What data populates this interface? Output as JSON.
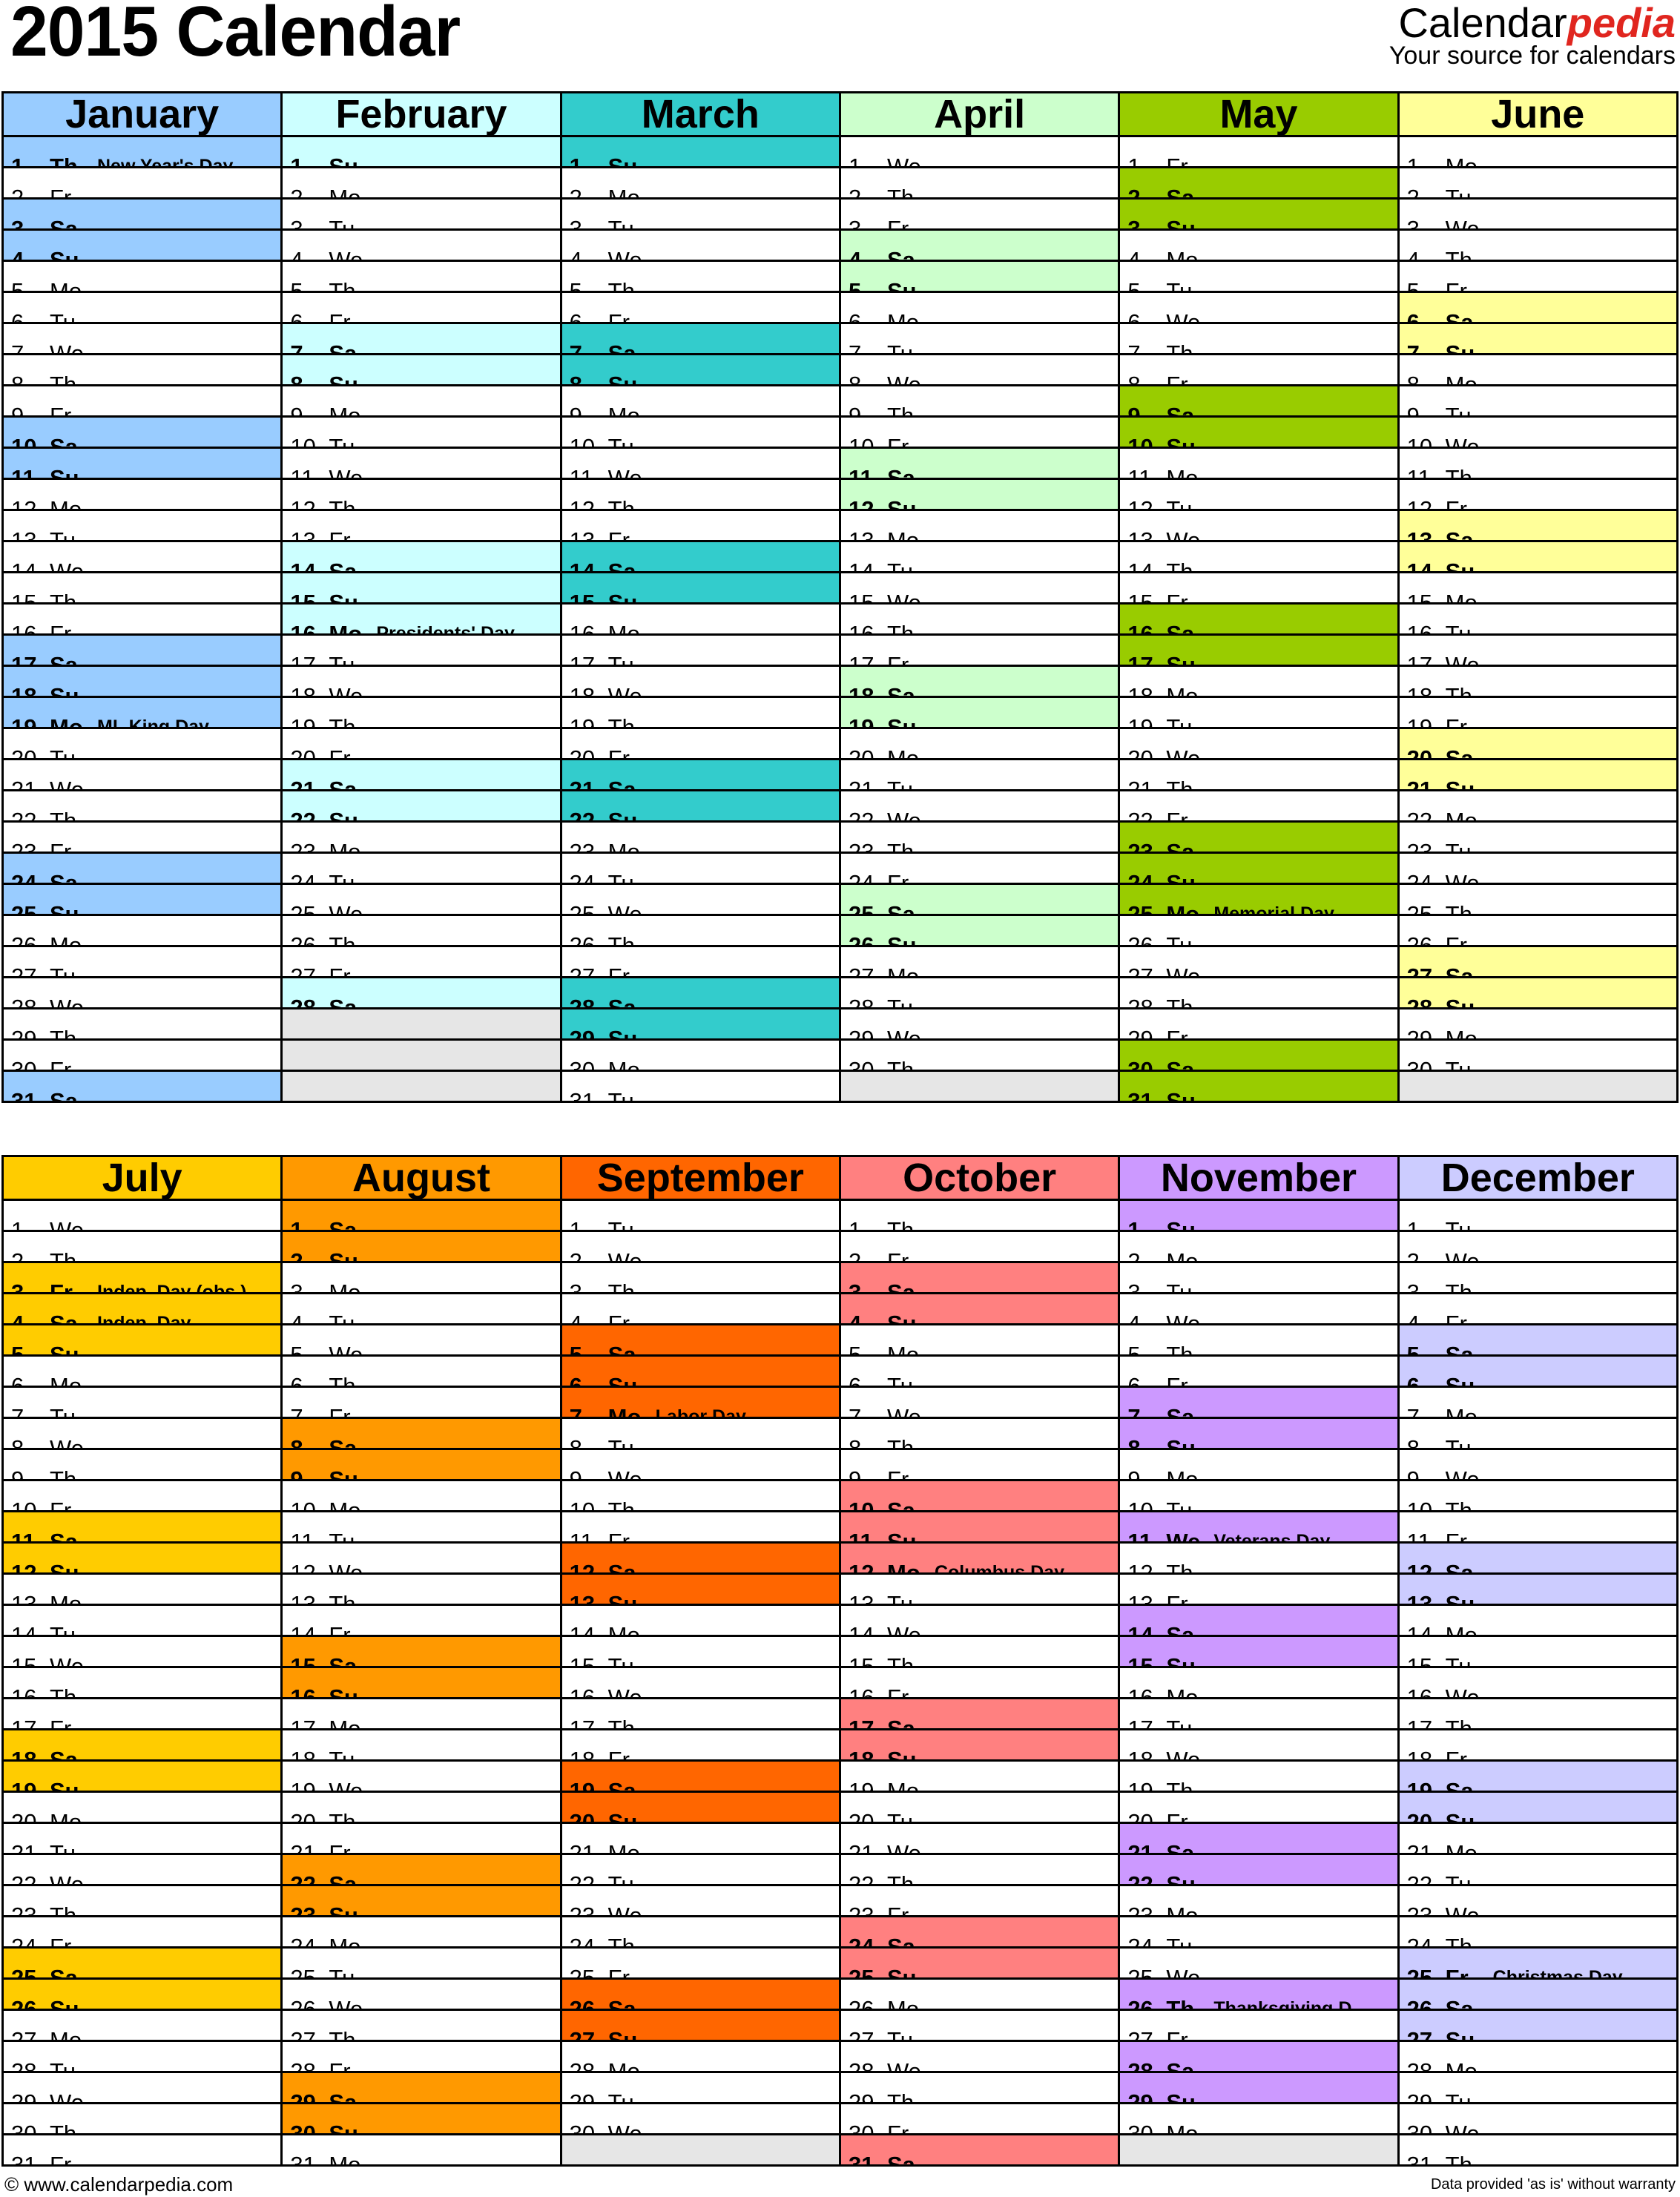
{
  "title": "2015 Calendar",
  "logo": {
    "brand_a": "Calendar",
    "brand_b": "pedia",
    "tagline": "Your source for calendars"
  },
  "weekdays": [
    "Su",
    "Mo",
    "Tu",
    "We",
    "Th",
    "Fr",
    "Sa"
  ],
  "months": [
    {
      "name": "January",
      "color": "#99CCFF",
      "first_weekday": "Th",
      "days": 31,
      "holidays": {
        "1": "New Year's Day",
        "19": "ML King Day"
      }
    },
    {
      "name": "February",
      "color": "#CCFFFF",
      "first_weekday": "Su",
      "days": 28,
      "holidays": {
        "16": "Presidents' Day"
      }
    },
    {
      "name": "March",
      "color": "#33CCCC",
      "first_weekday": "Su",
      "days": 31,
      "holidays": {}
    },
    {
      "name": "April",
      "color": "#CCFFCC",
      "first_weekday": "We",
      "days": 30,
      "holidays": {}
    },
    {
      "name": "May",
      "color": "#99CC00",
      "first_weekday": "Fr",
      "days": 31,
      "holidays": {
        "25": "Memorial Day"
      }
    },
    {
      "name": "June",
      "color": "#FFFF99",
      "first_weekday": "Mo",
      "days": 30,
      "holidays": {}
    },
    {
      "name": "July",
      "color": "#FFCC00",
      "first_weekday": "We",
      "days": 31,
      "holidays": {
        "3": "Indep. Day (obs.)",
        "4": "Indep. Day"
      }
    },
    {
      "name": "August",
      "color": "#FF9900",
      "first_weekday": "Sa",
      "days": 31,
      "holidays": {}
    },
    {
      "name": "September",
      "color": "#FF6600",
      "first_weekday": "Tu",
      "days": 30,
      "holidays": {
        "7": "Labor Day"
      }
    },
    {
      "name": "October",
      "color": "#FF8080",
      "first_weekday": "Th",
      "days": 31,
      "holidays": {
        "12": "Columbus Day"
      }
    },
    {
      "name": "November",
      "color": "#CC99FF",
      "first_weekday": "Su",
      "days": 30,
      "holidays": {
        "11": "Veterans Day",
        "26": "Thanksgiving D."
      }
    },
    {
      "name": "December",
      "color": "#CCCCFF",
      "first_weekday": "Tu",
      "days": 31,
      "holidays": {
        "25": "Christmas Day"
      }
    }
  ],
  "empty_cell_color": "#E6E6E6",
  "footer": {
    "left": "© www.calendarpedia.com",
    "right": "Data provided 'as is' without warranty"
  }
}
